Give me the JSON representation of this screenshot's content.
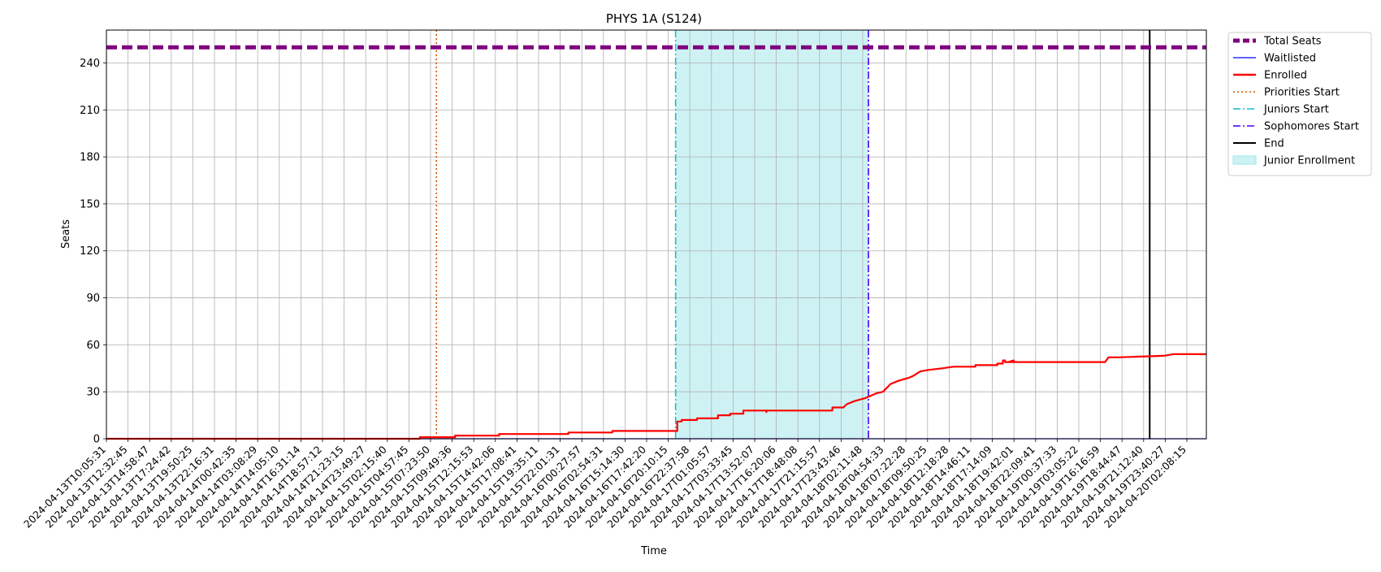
{
  "chart_data": {
    "type": "line",
    "title": "PHYS 1A (S124)",
    "xlabel": "Time",
    "ylabel": "Seats",
    "ylim": [
      0,
      261
    ],
    "xlim": [
      0,
      1.0
    ],
    "yticks": [
      0,
      30,
      60,
      90,
      120,
      150,
      180,
      210,
      240
    ],
    "grid": true,
    "legend_position": "outside-top-right",
    "x_tick_labels": [
      "2024-04-13T10:05:31",
      "2024-04-13T12:32:45",
      "2024-04-13T14:58:47",
      "2024-04-13T17:24:42",
      "2024-04-13T19:50:25",
      "2024-04-13T22:16:31",
      "2024-04-14T00:42:35",
      "2024-04-14T03:08:29",
      "2024-04-14T14:05:10",
      "2024-04-14T16:31:14",
      "2024-04-14T18:57:12",
      "2024-04-14T21:23:15",
      "2024-04-14T23:49:27",
      "2024-04-15T02:15:40",
      "2024-04-15T04:57:45",
      "2024-04-15T07:23:50",
      "2024-04-15T09:49:36",
      "2024-04-15T12:15:53",
      "2024-04-15T14:42:06",
      "2024-04-15T17:08:41",
      "2024-04-15T19:35:11",
      "2024-04-15T22:01:31",
      "2024-04-16T00:27:57",
      "2024-04-16T02:54:31",
      "2024-04-16T15:14:30",
      "2024-04-16T17:42:20",
      "2024-04-16T20:10:15",
      "2024-04-16T22:37:58",
      "2024-04-17T01:05:57",
      "2024-04-17T03:33:45",
      "2024-04-17T13:52:07",
      "2024-04-17T16:20:06",
      "2024-04-17T18:48:08",
      "2024-04-17T21:15:57",
      "2024-04-17T23:43:46",
      "2024-04-18T02:11:48",
      "2024-04-18T04:54:33",
      "2024-04-18T07:22:28",
      "2024-04-18T09:50:25",
      "2024-04-18T12:18:28",
      "2024-04-18T14:46:11",
      "2024-04-18T17:14:09",
      "2024-04-18T19:42:01",
      "2024-04-18T22:09:41",
      "2024-04-19T00:37:33",
      "2024-04-19T03:05:22",
      "2024-04-19T16:16:59",
      "2024-04-19T18:44:47",
      "2024-04-19T21:12:40",
      "2024-04-19T23:40:27",
      "2024-04-20T02:08:15"
    ],
    "series": [
      {
        "name": "Total Seats",
        "color": "#800080",
        "style": "dashed",
        "x": [
          0.0,
          1.0
        ],
        "y": [
          250,
          250
        ]
      },
      {
        "name": "Waitlisted",
        "color": "#0000ff",
        "style": "solid",
        "x": [
          0.0,
          1.0
        ],
        "y": [
          0,
          0
        ]
      },
      {
        "name": "Enrolled",
        "color": "#ff0000",
        "style": "steps",
        "x": [
          0.0,
          0.285,
          0.285,
          0.317,
          0.317,
          0.357,
          0.357,
          0.42,
          0.42,
          0.46,
          0.46,
          0.519,
          0.519,
          0.523,
          0.523,
          0.537,
          0.537,
          0.556,
          0.556,
          0.567,
          0.567,
          0.579,
          0.579,
          0.6,
          0.6,
          0.6,
          0.6,
          0.66,
          0.66,
          0.67,
          0.673,
          0.68,
          0.69,
          0.7,
          0.706,
          0.713,
          0.72,
          0.73,
          0.733,
          0.74,
          0.748,
          0.76,
          0.77,
          0.79,
          0.79,
          0.81,
          0.81,
          0.815,
          0.815,
          0.817,
          0.817,
          0.82,
          0.825,
          0.825,
          0.82,
          0.835,
          0.86,
          0.86,
          0.87,
          0.908,
          0.911,
          0.911,
          0.92,
          0.92,
          0.961,
          0.961,
          0.97,
          0.97,
          1.0
        ],
        "y": [
          0,
          0,
          1,
          1,
          2,
          2,
          3,
          3,
          4,
          4,
          5,
          5,
          11,
          11,
          12,
          12,
          13,
          13,
          15,
          15,
          16,
          16,
          18,
          18,
          17,
          17,
          18,
          18,
          20,
          20,
          22,
          24,
          26,
          29,
          30,
          35,
          37,
          39,
          40,
          43,
          44,
          45,
          46,
          46,
          47,
          47,
          48,
          48,
          50,
          50,
          49,
          49,
          50,
          50,
          49,
          49,
          49,
          49,
          49,
          49,
          52,
          52,
          52,
          52,
          53,
          53,
          54,
          54,
          54
        ]
      }
    ],
    "vertical_lines": [
      {
        "name": "Priorities Start",
        "color": "#d35400",
        "style": "dotted",
        "x": 0.3
      },
      {
        "name": "Juniors Start",
        "color": "#17becf",
        "style": "dashdot",
        "x": 0.5175
      },
      {
        "name": "Sophomores Start",
        "color": "#4b00ff",
        "style": "dashdot",
        "x": 0.6928
      },
      {
        "name": "End",
        "color": "#000000",
        "style": "solid",
        "x": 0.9485
      }
    ],
    "spans": [
      {
        "name": "Junior Enrollment",
        "color": "#9ee6e8",
        "x0": 0.5175,
        "x1": 0.6928
      }
    ]
  }
}
